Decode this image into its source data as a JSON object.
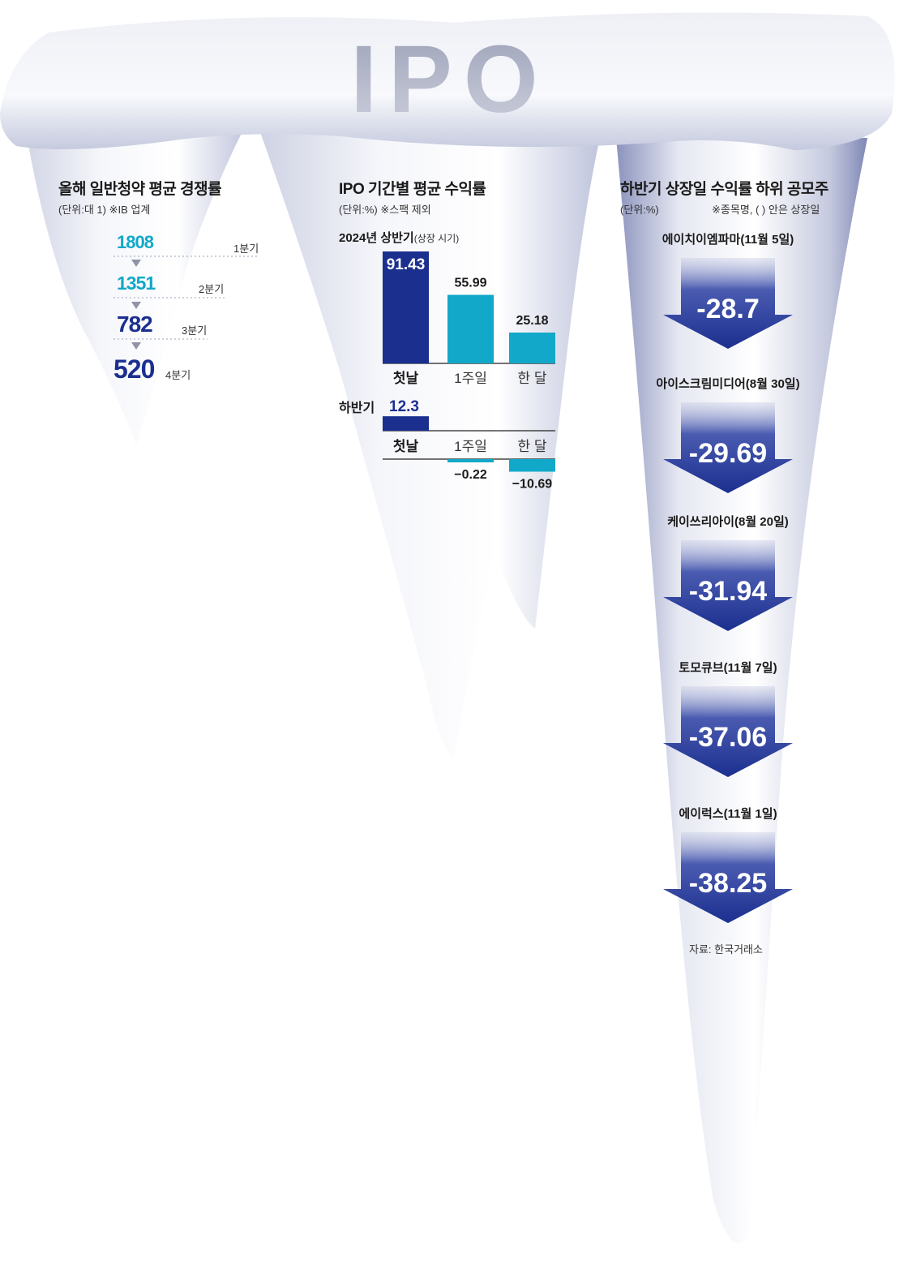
{
  "banner": {
    "logo_text": "IPO"
  },
  "competition": {
    "title": "올해 일반청약 평균 경쟁률",
    "unit_note": "(단위:대 1)  ※IB 업계",
    "quarters": [
      {
        "value": "1808",
        "label": "1분기"
      },
      {
        "value": "1351",
        "label": "2분기"
      },
      {
        "value": "782",
        "label": "3분기"
      },
      {
        "value": "520",
        "label": "4분기"
      }
    ]
  },
  "returns": {
    "title": "IPO 기간별 평균 수익률",
    "unit_note": "(단위:%)  ※스팩 제외",
    "first_half_label": "2024년 상반기",
    "first_half_note": "(상장 시기)",
    "second_half_label": "하반기"
  },
  "bottom_stocks": {
    "title": "하반기 상장일 수익률 하위 공모주",
    "unit_note": "(단위:%)",
    "note": "※종목명, ( ) 안은 상장일",
    "items": [
      {
        "name": "에이치이엠파마(11월 5일)",
        "value": "-28.7"
      },
      {
        "name": "아이스크림미디어(8월 30일)",
        "value": "-29.69"
      },
      {
        "name": "케이쓰리아이(8월 20일)",
        "value": "-31.94"
      },
      {
        "name": "토모큐브(11월 7일)",
        "value": "-37.06"
      },
      {
        "name": "에이럭스(11월 1일)",
        "value": "-38.25"
      }
    ],
    "source": "자료: 한국거래소"
  },
  "colors": {
    "navy": "#1b2f8f",
    "cyan": "#12a8c9",
    "ice_shadow": "#9aa3c8"
  },
  "chart_data": [
    {
      "type": "line",
      "title": "올해 일반청약 평균 경쟁률",
      "categories": [
        "1분기",
        "2분기",
        "3분기",
        "4분기"
      ],
      "values": [
        1808,
        1351,
        782,
        520
      ]
    },
    {
      "type": "bar",
      "title": "2024년 상반기",
      "categories": [
        "첫날",
        "1주일",
        "한 달"
      ],
      "values": [
        91.43,
        55.99,
        25.18
      ],
      "ylim": [
        0,
        91.43
      ]
    },
    {
      "type": "bar",
      "title": "하반기",
      "categories": [
        "첫날",
        "1주일",
        "한 달"
      ],
      "values": [
        12.3,
        -0.22,
        -10.69
      ]
    },
    {
      "type": "bar",
      "title": "하반기 상장일 수익률 하위 공모주",
      "categories": [
        "에이치이엠파마(11월 5일)",
        "아이스크림미디어(8월 30일)",
        "케이쓰리아이(8월 20일)",
        "토모큐브(11월 7일)",
        "에이럭스(11월 1일)"
      ],
      "values": [
        -28.7,
        -29.69,
        -31.94,
        -37.06,
        -38.25
      ]
    }
  ]
}
